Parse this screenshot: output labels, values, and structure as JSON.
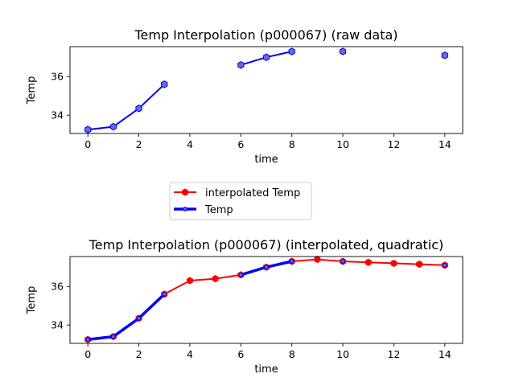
{
  "chart_data": [
    {
      "type": "line",
      "title": "Temp Interpolation (p000067) (raw data)",
      "xlabel": "time",
      "ylabel": "Temp",
      "xlim": [
        -0.7,
        14.7
      ],
      "ylim": [
        33.05,
        37.55
      ],
      "xticks": [
        0,
        2,
        4,
        6,
        8,
        10,
        12,
        14
      ],
      "yticks": [
        34,
        36
      ],
      "series": [
        {
          "name": "Temp",
          "color": "#0000ff",
          "marker": "hexagon",
          "marker_face": "#6a6acd",
          "x": [
            0,
            1,
            2,
            3,
            4,
            5,
            6,
            7,
            8,
            9,
            10,
            11,
            12,
            13,
            14
          ],
          "y": [
            33.25,
            33.4,
            34.35,
            35.6,
            null,
            null,
            36.6,
            37.0,
            37.3,
            null,
            37.3,
            null,
            null,
            null,
            37.1
          ]
        }
      ]
    },
    {
      "type": "line",
      "title": "Temp Interpolation (p000067) (interpolated, quadratic)",
      "xlabel": "time",
      "ylabel": "Temp",
      "xlim": [
        -0.7,
        14.7
      ],
      "ylim": [
        33.05,
        37.55
      ],
      "xticks": [
        0,
        2,
        4,
        6,
        8,
        10,
        12,
        14
      ],
      "yticks": [
        34,
        36
      ],
      "series": [
        {
          "name": "interpolated Temp",
          "color": "#ff0000",
          "marker": "hexagon",
          "x": [
            0,
            1,
            2,
            3,
            4,
            5,
            6,
            7,
            8,
            9,
            10,
            11,
            12,
            13,
            14
          ],
          "y": [
            33.25,
            33.4,
            34.35,
            35.6,
            36.3,
            36.4,
            36.6,
            37.0,
            37.3,
            37.4,
            37.3,
            37.25,
            37.2,
            37.15,
            37.1
          ]
        },
        {
          "name": "Temp",
          "color": "#0000ff",
          "marker": "hexagon",
          "marker_face": "#6a6acd",
          "x": [
            0,
            1,
            2,
            3,
            4,
            5,
            6,
            7,
            8,
            9,
            10,
            11,
            12,
            13,
            14
          ],
          "y": [
            33.25,
            33.4,
            34.35,
            35.6,
            null,
            null,
            36.6,
            37.0,
            37.3,
            null,
            37.3,
            null,
            null,
            null,
            37.1
          ]
        }
      ]
    }
  ],
  "legend": {
    "entries": [
      "interpolated Temp",
      "Temp"
    ]
  }
}
